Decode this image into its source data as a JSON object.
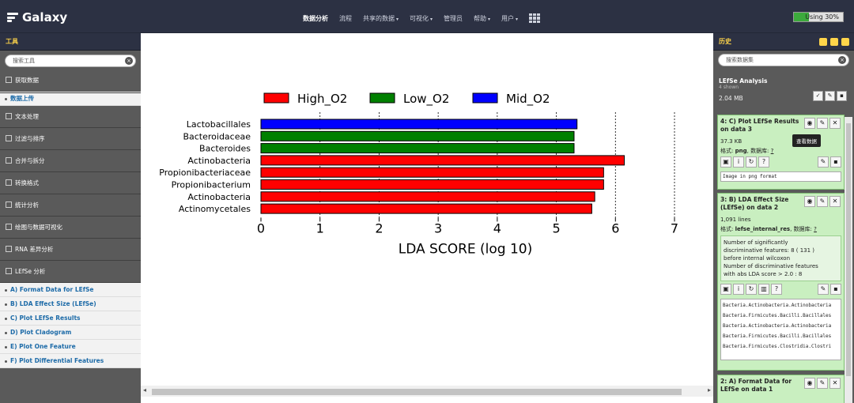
{
  "masthead": {
    "brand": "Galaxy",
    "nav": [
      {
        "label": "数据分析",
        "active": true,
        "caret": false
      },
      {
        "label": "流程",
        "active": false,
        "caret": false
      },
      {
        "label": "共享的数据",
        "active": false,
        "caret": true
      },
      {
        "label": "可视化",
        "active": false,
        "caret": true
      },
      {
        "label": "管理员",
        "active": false,
        "caret": false
      },
      {
        "label": "帮助",
        "active": false,
        "caret": true
      },
      {
        "label": "用户",
        "active": false,
        "caret": true
      }
    ],
    "quota": {
      "label": "Using 30%",
      "percent": 30
    }
  },
  "tools": {
    "header": "工具",
    "search_placeholder": "搜索工具",
    "sections_top": [
      "获取数据"
    ],
    "upload_link": "数据上传",
    "sections": [
      "文本处理",
      "过滤与排序",
      "合并与拆分",
      "转换格式",
      "统计分析",
      "绘图与数据可视化",
      "RNA 差异分析",
      "LEfSe 分析"
    ],
    "lefse_tools": [
      "A) Format Data for LEfSe",
      "B) LDA Effect Size (LEfSe)",
      "C) Plot LEfSe Results",
      "D) Plot Cladogram",
      "E) Plot One Feature",
      "F) Plot Differential Features"
    ]
  },
  "history": {
    "header": "历史",
    "search_placeholder": "搜索数据集",
    "name": "LEfSe Analysis",
    "shown": "4 shown",
    "size": "2.04 MB",
    "tooltip": "查看数据",
    "datasets": [
      {
        "title": "4: C) Plot LEfSe Results on data 3",
        "size": "37.3 KB",
        "format_label": "格式:",
        "format": "png",
        "db_label": "数据库:",
        "db": "?",
        "peek": "Image in png format"
      },
      {
        "title": "3: B) LDA Effect Size (LEfSe) on data 2",
        "lines": "1,091 lines",
        "format_label": "格式:",
        "format": "lefse_internal_res",
        "db_label": "数据库:",
        "db": "?",
        "info": [
          "Number of significantly",
          "discriminative features: 8 ( 131 )",
          "before internal wilcoxon",
          "Number of discriminative features",
          "with abs LDA score > 2.0 : 8"
        ],
        "peek": [
          "Bacteria.Actinobacteria.Actinobacteria",
          "Bacteria.Firmicutes.Bacilli.Bacillales",
          "Bacteria.Actinobacteria.Actinobacteria",
          "Bacteria.Firmicutes.Bacilli.Bacillales",
          "Bacteria.Firmicutes.Clostridia.Clostri"
        ]
      },
      {
        "title": "2: A) Format Data for LEfSe on data 1"
      }
    ]
  },
  "chart_data": {
    "type": "bar",
    "orientation": "horizontal",
    "xlabel": "LDA SCORE (log 10)",
    "xlim": [
      0,
      7
    ],
    "xticks": [
      "0",
      "1",
      "2",
      "3",
      "4",
      "5",
      "6",
      "7"
    ],
    "legend": [
      {
        "name": "High_O2",
        "color": "#ff0000"
      },
      {
        "name": "Low_O2",
        "color": "#008000"
      },
      {
        "name": "Mid_O2",
        "color": "#0000ff"
      }
    ],
    "categories": [
      "Lactobacillales",
      "Bacteroidaceae",
      "Bacteroides",
      "Actinobacteria",
      "Propionibacteriaceae",
      "Propionibacterium",
      "Actinobacteria",
      "Actinomycetales"
    ],
    "values": [
      5.35,
      5.3,
      5.3,
      6.15,
      5.8,
      5.8,
      5.65,
      5.6
    ],
    "groups": [
      "Mid_O2",
      "Low_O2",
      "Low_O2",
      "High_O2",
      "High_O2",
      "High_O2",
      "High_O2",
      "High_O2"
    ]
  }
}
